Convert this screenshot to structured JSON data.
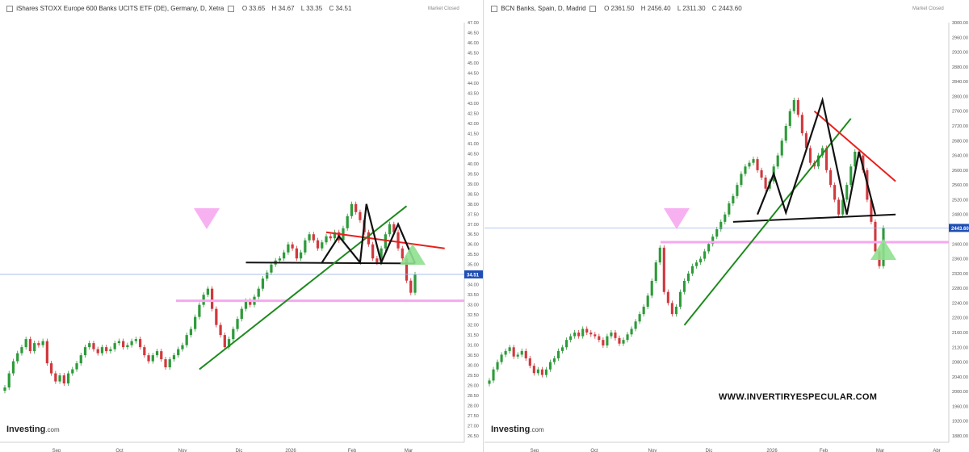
{
  "left": {
    "title": "iShares STOXX Europe 600 Banks UCITS ETF (DE), Germany, D, Xetra",
    "ohlc": {
      "o": "O 33.65",
      "h": "H 34.67",
      "l": "L 33.35",
      "c": "C 34.51"
    },
    "market_status": "Market Closed",
    "logo": "Investing",
    "logo_suffix": ".com",
    "current_price_label": "34.51"
  },
  "right": {
    "title": "BCN Banks, Spain, D, Madrid",
    "ohlc": {
      "o": "O 2361.50",
      "h": "H 2456.40",
      "l": "L 2311.30",
      "c": "C 2443.60"
    },
    "market_status": "Market Closed",
    "logo": "Investing",
    "logo_suffix": ".com",
    "current_price_label": "2443.60"
  },
  "watermark": "WWW.INVERTIRYESPECULAR.COM",
  "colors": {
    "up": "#2e9b3a",
    "down": "#d0393e",
    "resistance": "#e8201c",
    "support": "#1e8a1e",
    "neck": "#111111",
    "pink": "#f6a8f0",
    "triangle_down": "#f6a8f0",
    "triangle_up": "#8fe08f",
    "price_line": "#9db3e6",
    "price_tag": "#1f4fb5"
  },
  "chart_data": [
    {
      "type": "candlestick",
      "title": "iShares STOXX Europe 600 Banks UCITS ETF (DE), Germany, D, Xetra",
      "x_ticks": [
        "Sep",
        "Oct",
        "Nov",
        "Dic",
        "2026",
        "Feb",
        "Mar"
      ],
      "y_ticks": [
        "47.00",
        "46.50",
        "46.00",
        "45.50",
        "45.00",
        "44.50",
        "44.00",
        "43.50",
        "43.00",
        "42.50",
        "42.00",
        "41.50",
        "41.00",
        "40.50",
        "40.00",
        "39.50",
        "39.00",
        "38.50",
        "38.00",
        "37.50",
        "37.00",
        "36.50",
        "36.00",
        "35.50",
        "35.00",
        "34.50",
        "34.00",
        "33.50",
        "33.00",
        "32.50",
        "32.00",
        "31.50",
        "31.00",
        "30.50",
        "30.00",
        "29.50",
        "29.00",
        "28.50",
        "28.00",
        "27.50",
        "27.00",
        "26.50"
      ],
      "ylim": [
        26.5,
        47.0
      ],
      "last_close": 34.51,
      "closes": [
        28.9,
        29.6,
        30.2,
        30.6,
        30.9,
        31.3,
        30.7,
        31.1,
        31.0,
        31.2,
        30.1,
        29.6,
        29.2,
        29.5,
        29.1,
        29.6,
        29.8,
        30.1,
        30.5,
        30.9,
        31.1,
        30.8,
        30.6,
        30.9,
        30.7,
        30.8,
        31.1,
        31.2,
        30.9,
        31.0,
        31.2,
        31.3,
        30.9,
        30.5,
        30.2,
        30.5,
        30.7,
        30.3,
        29.9,
        30.3,
        30.5,
        30.8,
        31.0,
        31.5,
        31.8,
        32.4,
        33.0,
        33.5,
        33.8,
        32.8,
        32.0,
        31.5,
        30.9,
        31.3,
        31.8,
        32.3,
        32.8,
        33.2,
        33.0,
        33.4,
        33.8,
        34.3,
        34.6,
        35.0,
        35.2,
        35.3,
        35.6,
        36.0,
        35.8,
        35.3,
        35.6,
        36.2,
        36.5,
        36.2,
        35.8,
        36.1,
        36.4,
        36.3,
        36.6,
        36.2,
        36.8,
        37.4,
        38.0,
        37.6,
        37.2,
        36.6,
        36.0,
        35.3,
        35.1,
        35.8,
        36.5,
        37.0,
        36.6,
        35.8,
        35.3,
        34.2,
        33.6,
        34.51
      ],
      "annotations": {
        "resistance_line": [
          [
            40.5,
            36.6
          ],
          [
            108.5,
            35.0
          ]
        ],
        "support_trendline": [
          [
            0,
            29.8
          ],
          [
            77.4,
            37.9
          ]
        ],
        "neckline": [
          [
            0,
            35.1
          ],
          [
            108.5,
            35.05
          ]
        ],
        "pattern": [
          [
            0,
            35.1
          ],
          [
            9.4,
            36.4
          ],
          [
            19.7,
            35.1
          ],
          [
            31.0,
            38.0
          ],
          [
            39.4,
            35.1
          ],
          [
            48.8,
            37.0
          ],
          [
            58.1,
            35.05
          ]
        ],
        "horizontal_level": 33.2
      }
    },
    {
      "type": "candlestick",
      "title": "BCN Banks, Spain, D, Madrid",
      "x_ticks": [
        "Sep",
        "Oct",
        "Nov",
        "Dic",
        "2026",
        "Feb",
        "Mar",
        "Abr"
      ],
      "y_ticks": [
        "3000.00",
        "2960.00",
        "2920.00",
        "2880.00",
        "2840.00",
        "2800.00",
        "2760.00",
        "2720.00",
        "2680.00",
        "2640.00",
        "2600.00",
        "2560.00",
        "2520.00",
        "2480.00",
        "2440.00",
        "2400.00",
        "2360.00",
        "2320.00",
        "2280.00",
        "2240.00",
        "2200.00",
        "2160.00",
        "2120.00",
        "2080.00",
        "2040.00",
        "2000.00",
        "1960.00",
        "1920.00",
        "1880.00"
      ],
      "ylim": [
        1880,
        3000
      ],
      "last_close": 2443.6,
      "closes": [
        2030,
        2060,
        2080,
        2100,
        2110,
        2120,
        2095,
        2100,
        2110,
        2090,
        2070,
        2050,
        2060,
        2045,
        2060,
        2080,
        2090,
        2110,
        2120,
        2140,
        2150,
        2160,
        2150,
        2170,
        2160,
        2155,
        2150,
        2140,
        2125,
        2150,
        2160,
        2145,
        2130,
        2140,
        2155,
        2170,
        2190,
        2210,
        2230,
        2260,
        2300,
        2350,
        2390,
        2270,
        2240,
        2210,
        2230,
        2270,
        2300,
        2320,
        2340,
        2350,
        2360,
        2380,
        2400,
        2420,
        2440,
        2460,
        2480,
        2510,
        2530,
        2560,
        2590,
        2610,
        2620,
        2630,
        2600,
        2580,
        2550,
        2570,
        2610,
        2640,
        2680,
        2720,
        2760,
        2790,
        2750,
        2700,
        2660,
        2620,
        2610,
        2640,
        2660,
        2600,
        2560,
        2520,
        2480,
        2520,
        2560,
        2610,
        2650,
        2640,
        2600,
        2520,
        2460,
        2380,
        2340,
        2443.6
      ],
      "annotations": {
        "resistance_line": [
          [
            0,
            2760
          ],
          [
            100,
            2580
          ]
        ],
        "support_trendline": [
          [
            0,
            2180
          ],
          [
            100,
            2740
          ]
        ],
        "neckline": [
          [
            0,
            2460
          ],
          [
            100,
            2480
          ]
        ],
        "pattern": [
          [
            0,
            2480
          ],
          [
            12,
            2590
          ],
          [
            20,
            2485
          ],
          [
            33,
            2790
          ],
          [
            44,
            2480
          ],
          [
            52,
            2650
          ],
          [
            63,
            2480
          ]
        ],
        "horizontal_level": 2405
      }
    }
  ]
}
